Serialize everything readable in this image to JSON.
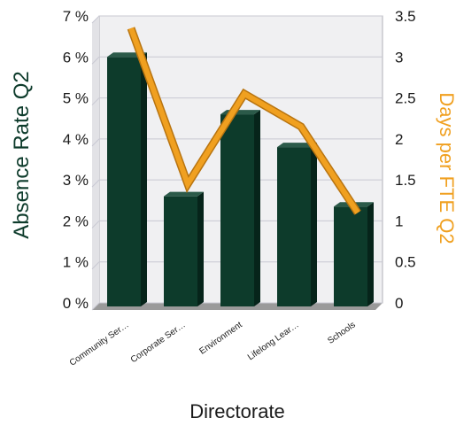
{
  "chart_data": {
    "type": "bar",
    "categories": [
      "Community Ser…",
      "Corporate Ser…",
      "Environment",
      "Lifelong Lear…",
      "Schools"
    ],
    "series": [
      {
        "name": "Absence Rate Q2",
        "type": "bar",
        "axis": "left",
        "values": [
          6.0,
          2.6,
          4.6,
          3.8,
          2.35
        ]
      },
      {
        "name": "Days per FTE Q2",
        "type": "line",
        "axis": "right",
        "values": [
          3.35,
          1.45,
          2.55,
          2.15,
          1.1
        ]
      }
    ],
    "xlabel": "Directorate",
    "ylabel_left": "Absence Rate Q2",
    "ylabel_right": "Days per FTE Q2",
    "ylim_left": [
      0,
      7
    ],
    "ylim_right": [
      0,
      3.5
    ],
    "yticks_left": [
      "0 %",
      "1 %",
      "2 %",
      "3 %",
      "4 %",
      "5 %",
      "6 %",
      "7 %"
    ],
    "yticks_right": [
      "0",
      "0.5",
      "1",
      "1.5",
      "2",
      "2.5",
      "3",
      "3.5"
    ],
    "grid": true,
    "colors": {
      "bar": "#0d3b2b",
      "bar_side": "#06241a",
      "bar_top": "#2b5a49",
      "line": "#f0a020",
      "line_edge": "#b87410",
      "left_label": "#0d3b2b",
      "right_label": "#f0a020",
      "grid": "#c8c8d2",
      "plot_bg": "#f0f0f2"
    }
  }
}
